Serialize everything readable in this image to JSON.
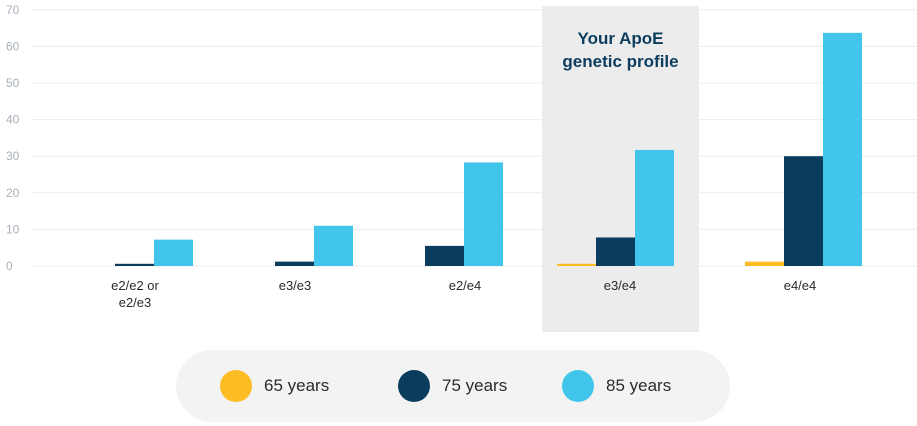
{
  "chart_data": {
    "type": "bar",
    "categories": [
      "e2/e2 or e2/e3",
      "e3/e3",
      "e2/e4",
      "e3/e4",
      "e4/e4"
    ],
    "series": [
      {
        "name": "65 years",
        "color": "#fbbd23",
        "values": [
          0,
          0,
          0,
          0.6,
          1.2
        ]
      },
      {
        "name": "75 years",
        "color": "#093c5d",
        "values": [
          0.6,
          1.2,
          5.5,
          7.8,
          30
        ]
      },
      {
        "name": "85 years",
        "color": "#41c5eb",
        "values": [
          7.2,
          11,
          28.3,
          31.7,
          63.7
        ]
      }
    ],
    "ylim": [
      0,
      70
    ],
    "yticks": [
      0,
      10,
      20,
      30,
      40,
      50,
      60,
      70
    ],
    "grid": true,
    "highlight": {
      "category_index": 3,
      "label_line1": "Your ApoE",
      "label_line2": "genetic profile"
    },
    "legend_position": "bottom"
  }
}
